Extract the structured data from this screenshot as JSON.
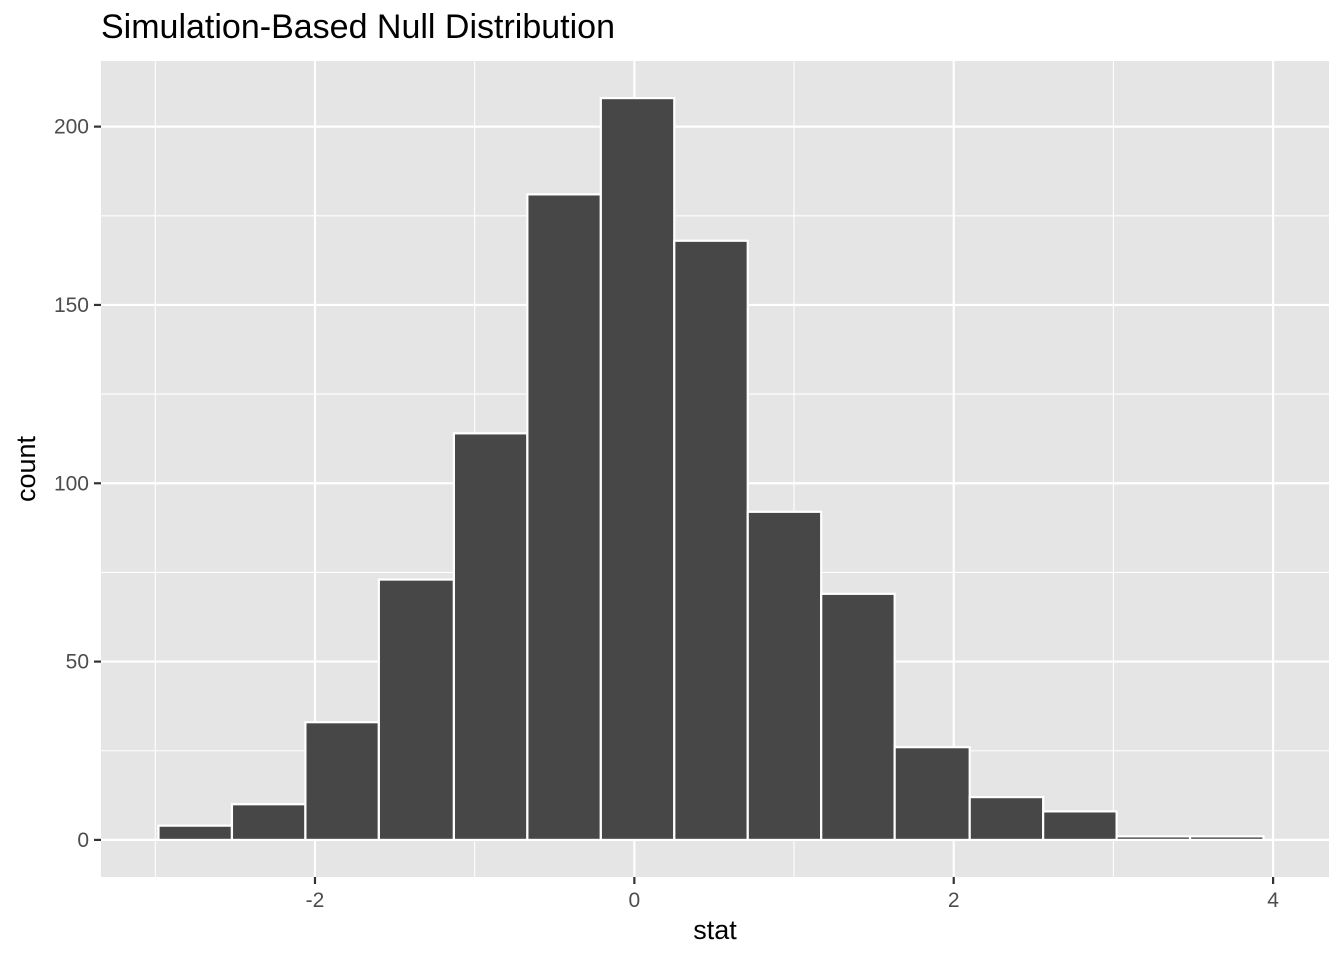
{
  "chart_data": {
    "type": "bar",
    "title": "Simulation-Based Null Distribution",
    "xlabel": "stat",
    "ylabel": "count",
    "bins": [
      {
        "x_start": -2.98,
        "x_end": -2.52,
        "count": 4
      },
      {
        "x_start": -2.52,
        "x_end": -2.06,
        "count": 10
      },
      {
        "x_start": -2.06,
        "x_end": -1.6,
        "count": 33
      },
      {
        "x_start": -1.6,
        "x_end": -1.13,
        "count": 73
      },
      {
        "x_start": -1.13,
        "x_end": -0.67,
        "count": 114
      },
      {
        "x_start": -0.67,
        "x_end": -0.21,
        "count": 181
      },
      {
        "x_start": -0.21,
        "x_end": 0.25,
        "count": 208
      },
      {
        "x_start": 0.25,
        "x_end": 0.71,
        "count": 168
      },
      {
        "x_start": 0.71,
        "x_end": 1.17,
        "count": 92
      },
      {
        "x_start": 1.17,
        "x_end": 1.63,
        "count": 69
      },
      {
        "x_start": 1.63,
        "x_end": 2.1,
        "count": 26
      },
      {
        "x_start": 2.1,
        "x_end": 2.56,
        "count": 12
      },
      {
        "x_start": 2.56,
        "x_end": 3.02,
        "count": 8
      },
      {
        "x_start": 3.02,
        "x_end": 3.48,
        "count": 1
      },
      {
        "x_start": 3.48,
        "x_end": 3.94,
        "count": 1
      }
    ],
    "xlim": [
      -3.34,
      4.35
    ],
    "ylim": [
      -10.4,
      218.4
    ],
    "x_ticks": [
      -2,
      0,
      2,
      4
    ],
    "x_tick_labels": [
      "-2",
      "0",
      "2",
      "4"
    ],
    "y_ticks": [
      0,
      50,
      100,
      150,
      200
    ],
    "y_tick_labels": [
      "0",
      "50",
      "100",
      "150",
      "200"
    ],
    "grid": true,
    "legend": "none",
    "colors": {
      "panel_background": "#e5e5e5",
      "grid_line": "#ffffff",
      "bar_fill": "#474747",
      "bar_outline": "#ffffff",
      "tick_text": "#4d4d4d",
      "text": "#000000"
    }
  }
}
